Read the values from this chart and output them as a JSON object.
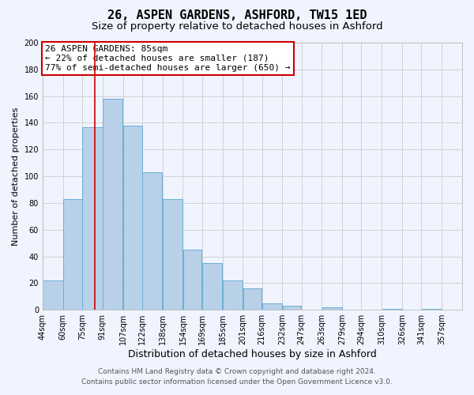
{
  "title": "26, ASPEN GARDENS, ASHFORD, TW15 1ED",
  "subtitle": "Size of property relative to detached houses in Ashford",
  "xlabel": "Distribution of detached houses by size in Ashford",
  "ylabel": "Number of detached properties",
  "footer_line1": "Contains HM Land Registry data © Crown copyright and database right 2024.",
  "footer_line2": "Contains public sector information licensed under the Open Government Licence v3.0.",
  "annotation_line1": "26 ASPEN GARDENS: 85sqm",
  "annotation_line2": "← 22% of detached houses are smaller (187)",
  "annotation_line3": "77% of semi-detached houses are larger (650) →",
  "bar_left_edges": [
    44,
    60,
    75,
    91,
    107,
    122,
    138,
    154,
    169,
    185,
    201,
    216,
    232,
    247,
    263,
    279,
    294,
    310,
    326,
    341
  ],
  "bar_heights": [
    22,
    83,
    137,
    158,
    138,
    103,
    83,
    45,
    35,
    22,
    16,
    5,
    3,
    0,
    2,
    0,
    0,
    1,
    0,
    1
  ],
  "tick_labels": [
    "44sqm",
    "60sqm",
    "75sqm",
    "91sqm",
    "107sqm",
    "122sqm",
    "138sqm",
    "154sqm",
    "169sqm",
    "185sqm",
    "201sqm",
    "216sqm",
    "232sqm",
    "247sqm",
    "263sqm",
    "279sqm",
    "294sqm",
    "310sqm",
    "326sqm",
    "341sqm",
    "357sqm"
  ],
  "tick_positions": [
    44,
    60,
    75,
    91,
    107,
    122,
    138,
    154,
    169,
    185,
    201,
    216,
    232,
    247,
    263,
    279,
    294,
    310,
    326,
    341,
    357
  ],
  "bar_color": "#b8d0e8",
  "bar_edge_color": "#6aaed6",
  "vline_x": 85,
  "vline_color": "#cc0000",
  "annotation_box_edge": "#cc0000",
  "ylim": [
    0,
    200
  ],
  "yticks": [
    0,
    20,
    40,
    60,
    80,
    100,
    120,
    140,
    160,
    180,
    200
  ],
  "grid_color": "#cccccc",
  "bg_color": "#f0f4ff",
  "title_fontsize": 11,
  "subtitle_fontsize": 9.5,
  "xlabel_fontsize": 9,
  "ylabel_fontsize": 8,
  "tick_fontsize": 7,
  "annotation_fontsize": 8,
  "footer_fontsize": 6.5
}
